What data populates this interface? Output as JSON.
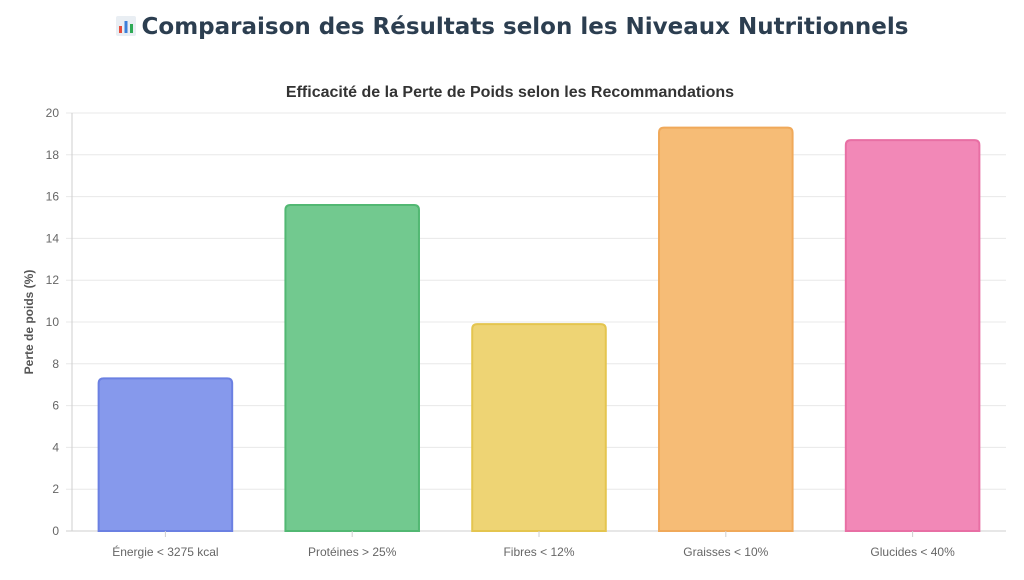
{
  "header": {
    "title": "Comparaison des Résultats selon les Niveaux Nutritionnels",
    "icon": "bar-chart-icon"
  },
  "chart_data": {
    "type": "bar",
    "title": "Efficacité de la Perte de Poids selon les Recommandations",
    "xlabel": "",
    "ylabel": "Perte de poids (%)",
    "ylim": [
      0,
      20
    ],
    "ytick_step": 2,
    "grid": true,
    "categories": [
      "Énergie < 3275 kcal",
      "Protéines > 25%",
      "Fibres < 12%",
      "Graisses < 10%",
      "Glucides < 40%"
    ],
    "values": [
      7.3,
      15.6,
      9.9,
      19.3,
      18.7
    ],
    "fill_colors": [
      "#8699ec",
      "#72c98f",
      "#eed474",
      "#f6bc76",
      "#f288b7"
    ],
    "border_colors": [
      "#6b80e2",
      "#52b873",
      "#e4c54f",
      "#f0a95a",
      "#e86fa4"
    ]
  }
}
